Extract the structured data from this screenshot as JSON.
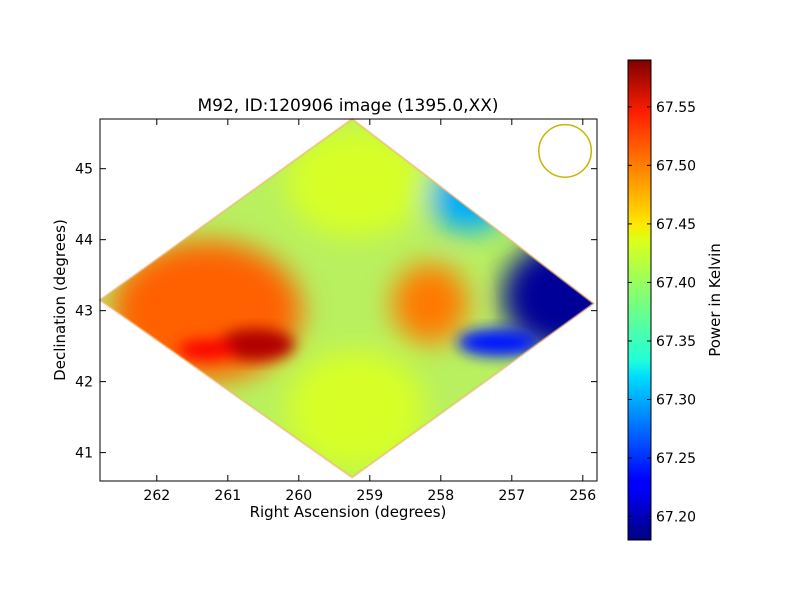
{
  "chart_data": {
    "type": "heatmap",
    "title": "M92, ID:120906 image (1395.0,XX)",
    "xlabel": "Right Ascension (degrees)",
    "ylabel": "Declination (degrees)",
    "colorbar_label": "Power in Kelvin",
    "xlim": [
      262.8,
      255.8
    ],
    "ylim": [
      40.6,
      45.7
    ],
    "x_ticks": [
      262,
      261,
      260,
      259,
      258,
      257,
      256
    ],
    "y_ticks": [
      41,
      42,
      43,
      44,
      45
    ],
    "colorbar_range": [
      67.18,
      67.59
    ],
    "colorbar_ticks": [
      "67.20",
      "67.25",
      "67.30",
      "67.35",
      "67.40",
      "67.45",
      "67.50",
      "67.55"
    ],
    "colormap": "jet",
    "grid": false,
    "footprint_diamond_vertices": [
      [
        262.8,
        43.15
      ],
      [
        259.25,
        45.7
      ],
      [
        255.85,
        43.1
      ],
      [
        259.25,
        40.65
      ]
    ],
    "beam_circle": {
      "center": [
        256.25,
        45.25
      ],
      "radius_deg": 0.37,
      "color": "#c8b400"
    },
    "features": [
      {
        "name": "west-warm-lobe",
        "ra": 261.3,
        "dec": 43.0,
        "value": 67.5
      },
      {
        "name": "west-hot-spot",
        "ra": 260.6,
        "dec": 42.52,
        "value": 67.57
      },
      {
        "name": "west-hot-spot-2",
        "ra": 261.3,
        "dec": 42.45,
        "value": 67.54
      },
      {
        "name": "east-cold-lobe",
        "ra": 256.3,
        "dec": 43.2,
        "value": 67.19
      },
      {
        "name": "east-cold-edge",
        "ra": 257.2,
        "dec": 42.55,
        "value": 67.24
      },
      {
        "name": "center-warm-patch",
        "ra": 258.15,
        "dec": 43.1,
        "value": 67.49
      },
      {
        "name": "north-cap",
        "ra": 259.2,
        "dec": 44.8,
        "value": 67.42
      },
      {
        "name": "south-cap",
        "ra": 259.2,
        "dec": 41.6,
        "value": 67.42
      },
      {
        "name": "northeast-cool-wedge",
        "ra": 257.6,
        "dec": 44.6,
        "value": 67.3
      }
    ]
  }
}
